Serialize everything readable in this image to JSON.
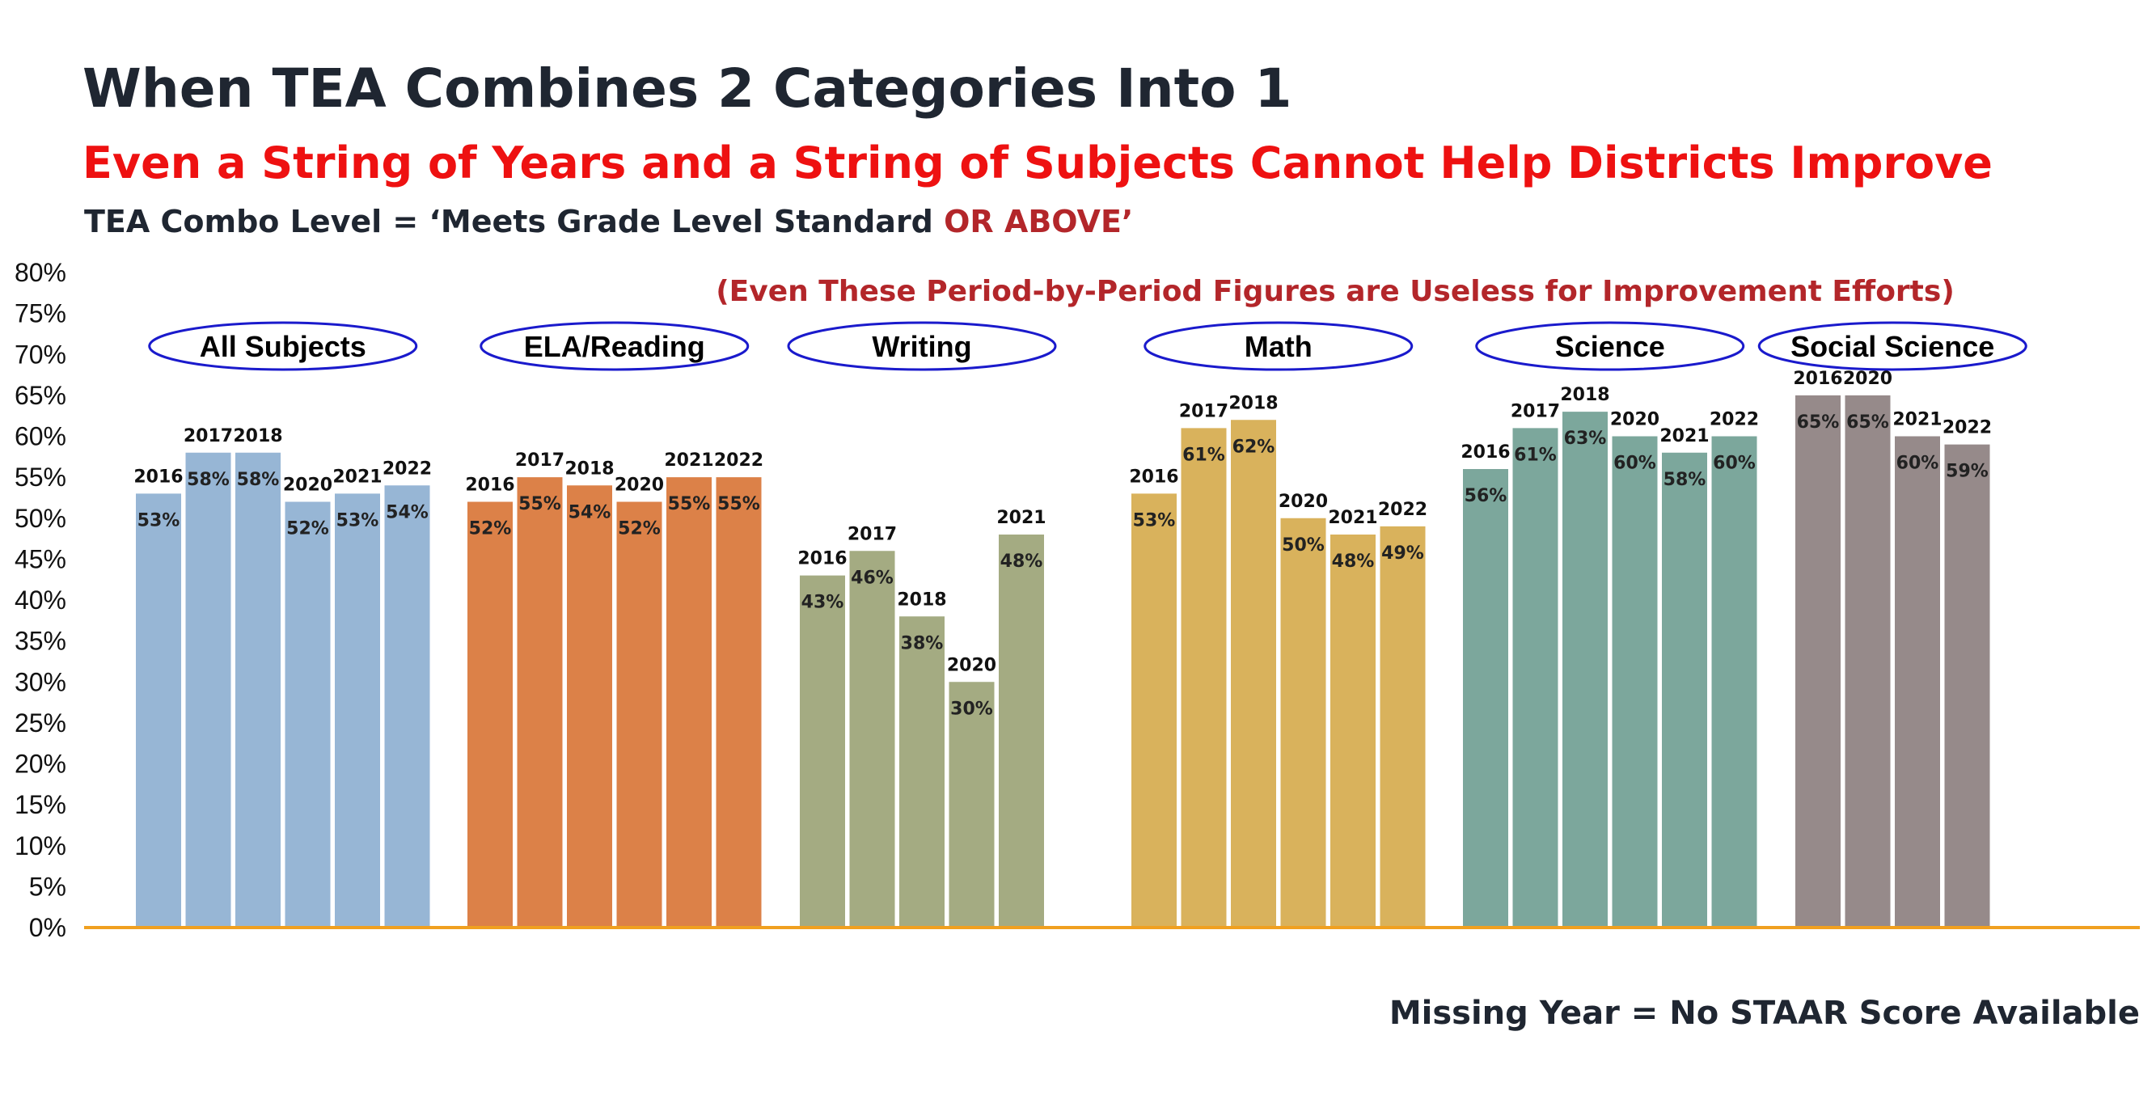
{
  "title": "When TEA Combines 2 Categories Into 1",
  "subtitle": "Even a String of Years and a String of Subjects Cannot Help Districts Improve",
  "combo_label": {
    "prefix": "TEA Combo Level = ‘Meets Grade Level Standard ",
    "highlight": "OR ABOVE’"
  },
  "note": "(Even These Period-by-Period Figures are Useless for Improvement Efforts)",
  "footer": "Missing Year = No STAAR Score Available",
  "colors": {
    "axis": "#f0a020",
    "ellipse_stroke": "#1a1acc"
  },
  "chart_data": {
    "type": "bar",
    "ylim": [
      0,
      80
    ],
    "yticks": [
      0,
      5,
      10,
      15,
      20,
      25,
      30,
      35,
      40,
      45,
      50,
      55,
      60,
      65,
      70,
      75,
      80
    ],
    "ytick_labels": [
      "0%",
      "5%",
      "10%",
      "15%",
      "20%",
      "25%",
      "30%",
      "35%",
      "40%",
      "45%",
      "50%",
      "55%",
      "60%",
      "65%",
      "70%",
      "75%",
      "80%"
    ],
    "grid": false,
    "groups": [
      {
        "name": "All Subjects",
        "color": "#97b6d5",
        "bars": [
          {
            "year": "2016",
            "value": 53,
            "label": "53%"
          },
          {
            "year": "2017",
            "value": 58,
            "label": "58%"
          },
          {
            "year": "2018",
            "value": 58,
            "label": "58%"
          },
          {
            "year": "2020",
            "value": 52,
            "label": "52%"
          },
          {
            "year": "2021",
            "value": 53,
            "label": "53%"
          },
          {
            "year": "2022",
            "value": 54,
            "label": "54%"
          }
        ]
      },
      {
        "name": "ELA/Reading",
        "color": "#dc8148",
        "bars": [
          {
            "year": "2016",
            "value": 52,
            "label": "52%"
          },
          {
            "year": "2017",
            "value": 55,
            "label": "55%"
          },
          {
            "year": "2018",
            "value": 54,
            "label": "54%"
          },
          {
            "year": "2020",
            "value": 52,
            "label": "52%"
          },
          {
            "year": "2021",
            "value": 55,
            "label": "55%"
          },
          {
            "year": "2022",
            "value": 55,
            "label": "55%"
          }
        ]
      },
      {
        "name": "Writing",
        "color": "#a4ab82",
        "bars": [
          {
            "year": "2016",
            "value": 43,
            "label": "43%"
          },
          {
            "year": "2017",
            "value": 46,
            "label": "46%"
          },
          {
            "year": "2018",
            "value": 38,
            "label": "38%"
          },
          {
            "year": "2020",
            "value": 30,
            "label": "30%"
          },
          {
            "year": "2021",
            "value": 48,
            "label": "48%"
          }
        ]
      },
      {
        "name": "Math",
        "color": "#d9b25c",
        "bars": [
          {
            "year": "2016",
            "value": 53,
            "label": "53%"
          },
          {
            "year": "2017",
            "value": 61,
            "label": "61%"
          },
          {
            "year": "2018",
            "value": 62,
            "label": "62%"
          },
          {
            "year": "2020",
            "value": 50,
            "label": "50%"
          },
          {
            "year": "2021",
            "value": 48,
            "label": "48%"
          },
          {
            "year": "2022",
            "value": 49,
            "label": "49%"
          }
        ]
      },
      {
        "name": "Science",
        "color": "#7ca79c",
        "bars": [
          {
            "year": "2016",
            "value": 56,
            "label": "56%"
          },
          {
            "year": "2017",
            "value": 61,
            "label": "61%"
          },
          {
            "year": "2018",
            "value": 63,
            "label": "63%"
          },
          {
            "year": "2020",
            "value": 60,
            "label": "60%"
          },
          {
            "year": "2021",
            "value": 58,
            "label": "58%"
          },
          {
            "year": "2022",
            "value": 60,
            "label": "60%"
          }
        ]
      },
      {
        "name": "Social Science",
        "color": "#968a8a",
        "bars": [
          {
            "year": "2016",
            "value": 65,
            "label": "65%"
          },
          {
            "year": "2020",
            "value": 65,
            "label": "65%"
          },
          {
            "year": "2021",
            "value": 60,
            "label": "60%"
          },
          {
            "year": "2022",
            "value": 59,
            "label": "59%"
          }
        ]
      }
    ]
  }
}
